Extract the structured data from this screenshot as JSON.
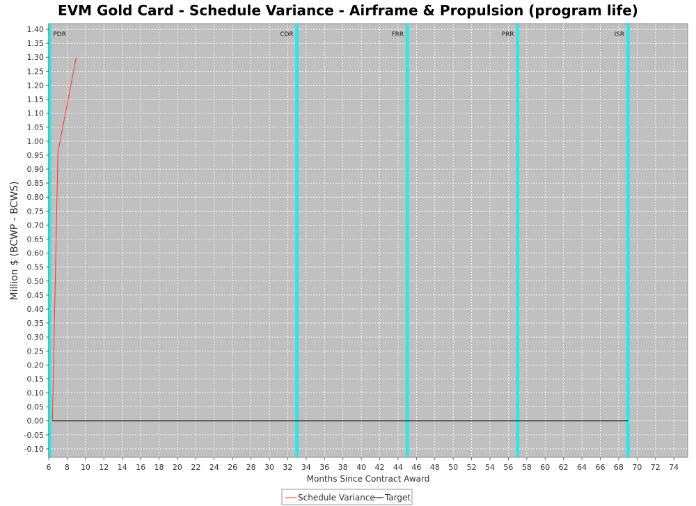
{
  "chart_data": {
    "type": "line",
    "title": "EVM Gold Card - Schedule Variance - Airframe & Propulsion (program life)",
    "xlabel": "Months Since Contract Award",
    "ylabel": "Million $ (BCWP - BCWS)",
    "xlim": [
      6,
      75.5
    ],
    "ylim": [
      -0.13,
      1.42
    ],
    "x_ticks": [
      6,
      8,
      10,
      12,
      14,
      16,
      18,
      20,
      22,
      24,
      26,
      28,
      30,
      32,
      34,
      36,
      38,
      40,
      42,
      44,
      46,
      48,
      50,
      52,
      54,
      56,
      58,
      60,
      62,
      64,
      66,
      68,
      70,
      72,
      74
    ],
    "y_ticks": [
      -0.1,
      -0.05,
      0.0,
      0.05,
      0.1,
      0.15,
      0.2,
      0.25,
      0.3,
      0.35,
      0.4,
      0.45,
      0.5,
      0.55,
      0.6,
      0.65,
      0.7,
      0.75,
      0.8,
      0.85,
      0.9,
      0.95,
      1.0,
      1.05,
      1.1,
      1.15,
      1.2,
      1.25,
      1.3,
      1.35,
      1.4
    ],
    "grid": true,
    "legend_position": "bottom-center",
    "series": [
      {
        "name": "Schedule Variance",
        "color": "#ff3333",
        "x": [
          6.4,
          7.0,
          9.0
        ],
        "y": [
          0.0,
          0.96,
          1.3
        ]
      },
      {
        "name": "Target",
        "color": "#000000",
        "x": [
          6.4,
          69.0
        ],
        "y": [
          0.0,
          0.0
        ]
      }
    ],
    "milestones": [
      {
        "label": "PDR",
        "x": 6.1
      },
      {
        "label": "CDR",
        "x": 33.0
      },
      {
        "label": "FRR",
        "x": 45.0
      },
      {
        "label": "PRR",
        "x": 57.0
      },
      {
        "label": "ISR",
        "x": 69.0
      }
    ],
    "colors": {
      "plot_background": "#c0c0c0",
      "milestone": "#33e6e6",
      "gridline": "#ffffff"
    }
  }
}
